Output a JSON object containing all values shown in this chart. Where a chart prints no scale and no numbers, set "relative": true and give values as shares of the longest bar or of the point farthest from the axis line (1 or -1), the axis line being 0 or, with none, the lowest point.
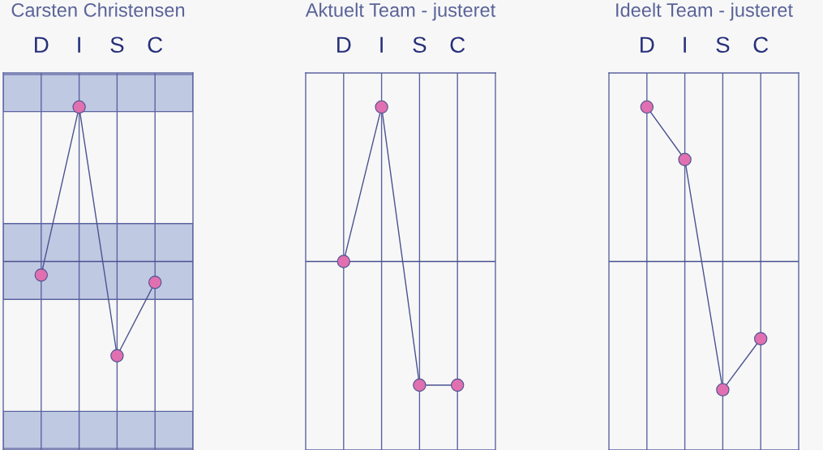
{
  "chart_data": [
    {
      "type": "line",
      "title": "Carsten Christensen",
      "categories": [
        "D",
        "I",
        "S",
        "C"
      ],
      "relative": true,
      "grid": "x",
      "marker": "circle",
      "line_style": "solid",
      "series": [
        {
          "color": "#4a5290",
          "values": [
            -0.088,
            1,
            -0.61,
            -0.135
          ]
        }
      ],
      "ref_lines": [
        {
          "axis": "y",
          "value": 0,
          "color": "#4a5290"
        }
      ],
      "bands": [
        {
          "axis": "y",
          "from": 0.97,
          "to": 1.21,
          "color": "#c0c9e2"
        },
        {
          "axis": "y",
          "from": -0.245,
          "to": 0.245,
          "color": "#c0c9e2"
        },
        {
          "axis": "y",
          "from": -1.21,
          "to": -0.97,
          "color": "#c0c9e2"
        }
      ]
    },
    {
      "type": "line",
      "title": "Aktuelt Team - justeret",
      "categories": [
        "D",
        "I",
        "S",
        "C"
      ],
      "relative": true,
      "grid": "x",
      "marker": "circle",
      "line_style": "solid",
      "series": [
        {
          "color": "#4a5290",
          "values": [
            0,
            1,
            -0.8,
            -0.8
          ]
        }
      ],
      "ref_lines": [
        {
          "axis": "y",
          "value": 0,
          "color": "#4a5290"
        }
      ]
    },
    {
      "type": "line",
      "title": "Ideelt Team - justeret",
      "categories": [
        "D",
        "I",
        "S",
        "C"
      ],
      "relative": true,
      "grid": "x",
      "marker": "circle",
      "line_style": "solid",
      "series": [
        {
          "color": "#4a5290",
          "values": [
            1,
            0.66,
            -0.83,
            -0.5
          ]
        }
      ],
      "ref_lines": [
        {
          "axis": "y",
          "value": 0,
          "color": "#4a5290"
        }
      ]
    }
  ]
}
